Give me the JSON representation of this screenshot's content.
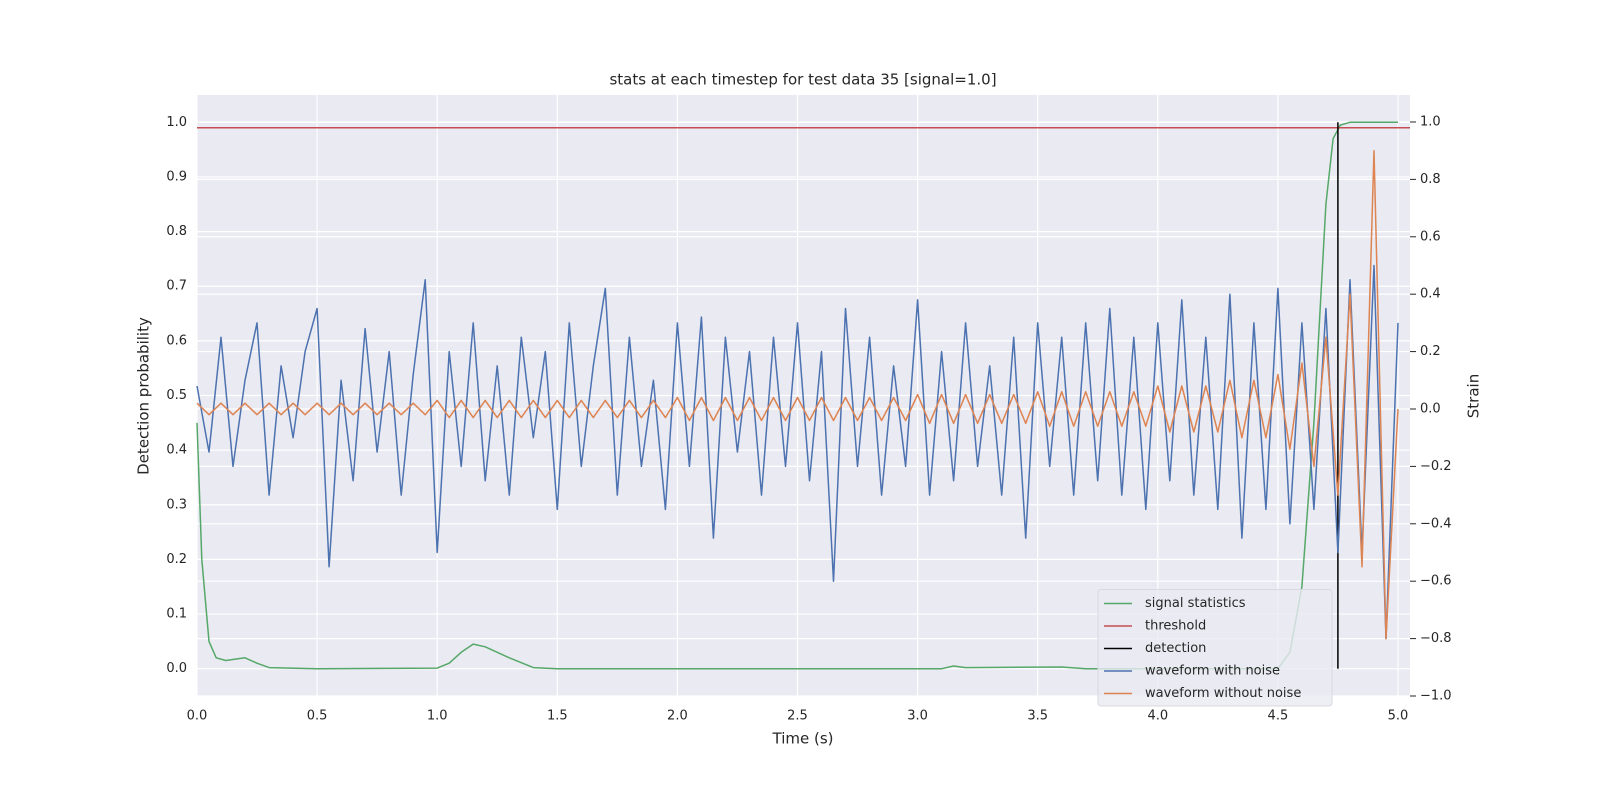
{
  "chart_data": {
    "type": "line",
    "title": "stats at each timestep for test data 35 [signal=1.0]",
    "xlabel": "Time (s)",
    "ylabel": "Detection probability",
    "y2label": "Strain",
    "xlim": [
      0,
      5.05
    ],
    "ylim": [
      -0.05,
      1.05
    ],
    "y2lim": [
      -1.0,
      1.094
    ],
    "xticks": [
      {
        "value": 0,
        "label": "0.0"
      },
      {
        "value": 0.5,
        "label": "0.5"
      },
      {
        "value": 1,
        "label": "1.0"
      },
      {
        "value": 1.5,
        "label": "1.5"
      },
      {
        "value": 2,
        "label": "2.0"
      },
      {
        "value": 2.5,
        "label": "2.5"
      },
      {
        "value": 3,
        "label": "3.0"
      },
      {
        "value": 3.5,
        "label": "3.5"
      },
      {
        "value": 4,
        "label": "4.0"
      },
      {
        "value": 4.5,
        "label": "4.5"
      },
      {
        "value": 5,
        "label": "5.0"
      }
    ],
    "yticks": [
      {
        "value": 0,
        "label": "0.0"
      },
      {
        "value": 0.1,
        "label": "0.1"
      },
      {
        "value": 0.2,
        "label": "0.2"
      },
      {
        "value": 0.3,
        "label": "0.3"
      },
      {
        "value": 0.4,
        "label": "0.4"
      },
      {
        "value": 0.5,
        "label": "0.5"
      },
      {
        "value": 0.6,
        "label": "0.6"
      },
      {
        "value": 0.7,
        "label": "0.7"
      },
      {
        "value": 0.8,
        "label": "0.8"
      },
      {
        "value": 0.9,
        "label": "0.9"
      },
      {
        "value": 1,
        "label": "1.0"
      }
    ],
    "y2ticks": [
      {
        "value": -1,
        "label": "−1.0"
      },
      {
        "value": -0.8,
        "label": "−0.8"
      },
      {
        "value": -0.6,
        "label": "−0.6"
      },
      {
        "value": -0.4,
        "label": "−0.4"
      },
      {
        "value": -0.2,
        "label": "−0.2"
      },
      {
        "value": 0,
        "label": "0.0"
      },
      {
        "value": 0.2,
        "label": "0.2"
      },
      {
        "value": 0.4,
        "label": "0.4"
      },
      {
        "value": 0.6,
        "label": "0.6"
      },
      {
        "value": 0.8,
        "label": "0.8"
      },
      {
        "value": 1,
        "label": "1.0"
      }
    ],
    "grid": true,
    "legend": "lower right",
    "x": [
      0,
      0.05,
      0.1,
      0.15,
      0.2,
      0.25,
      0.3,
      0.35,
      0.4,
      0.45,
      0.5,
      0.55,
      0.6,
      0.65,
      0.7,
      0.75,
      0.8,
      0.85,
      0.9,
      0.95,
      1,
      1.05,
      1.1,
      1.15,
      1.2,
      1.25,
      1.3,
      1.35,
      1.4,
      1.45,
      1.5,
      1.55,
      1.6,
      1.65,
      1.7,
      1.75,
      1.8,
      1.85,
      1.9,
      1.95,
      2,
      2.05,
      2.1,
      2.15,
      2.2,
      2.25,
      2.3,
      2.35,
      2.4,
      2.45,
      2.5,
      2.55,
      2.6,
      2.65,
      2.7,
      2.75,
      2.8,
      2.85,
      2.9,
      2.95,
      3,
      3.05,
      3.1,
      3.15,
      3.2,
      3.25,
      3.3,
      3.35,
      3.4,
      3.45,
      3.5,
      3.55,
      3.6,
      3.65,
      3.7,
      3.75,
      3.8,
      3.85,
      3.9,
      3.95,
      4,
      4.05,
      4.1,
      4.15,
      4.2,
      4.25,
      4.3,
      4.35,
      4.4,
      4.45,
      4.5,
      4.55,
      4.6,
      4.65,
      4.7,
      4.75,
      4.8,
      4.85,
      4.9,
      4.95,
      5
    ],
    "series": [
      {
        "name": "signal statistics",
        "color": "#55a868",
        "x": [
          0,
          0.02,
          0.05,
          0.08,
          0.12,
          0.2,
          0.25,
          0.3,
          0.5,
          1.0,
          1.05,
          1.1,
          1.15,
          1.2,
          1.3,
          1.4,
          1.5,
          3.1,
          3.15,
          3.2,
          3.6,
          3.7,
          4.5,
          4.55,
          4.6,
          4.65,
          4.7,
          4.73,
          4.76,
          4.8,
          5.0
        ],
        "values": [
          0.45,
          0.2,
          0.05,
          0.02,
          0.015,
          0.02,
          0.01,
          0.002,
          0,
          0.001,
          0.01,
          0.03,
          0.045,
          0.04,
          0.02,
          0.002,
          0,
          0,
          0.005,
          0.002,
          0.003,
          0,
          0,
          0.03,
          0.15,
          0.45,
          0.85,
          0.97,
          0.995,
          1.0,
          1.0
        ]
      },
      {
        "name": "threshold",
        "color": "#c44e52",
        "x": [
          0,
          5.05
        ],
        "values": [
          0.99,
          0.99
        ]
      },
      {
        "name": "detection",
        "color": "#000000",
        "x": [
          4.75,
          4.75
        ],
        "values": [
          0,
          1
        ]
      },
      {
        "name": "waveform with noise",
        "color": "#4c72b0",
        "axis": "y2",
        "values": [
          0.08,
          -0.15,
          0.25,
          -0.2,
          0.1,
          0.3,
          -0.3,
          0.15,
          -0.1,
          0.2,
          0.35,
          -0.55,
          0.1,
          -0.25,
          0.28,
          -0.15,
          0.2,
          -0.3,
          0.12,
          0.45,
          -0.5,
          0.2,
          -0.2,
          0.3,
          -0.25,
          0.15,
          -0.3,
          0.25,
          -0.1,
          0.2,
          -0.35,
          0.3,
          -0.2,
          0.15,
          0.42,
          -0.3,
          0.25,
          -0.2,
          0.1,
          -0.35,
          0.3,
          -0.2,
          0.32,
          -0.45,
          0.25,
          -0.15,
          0.2,
          -0.3,
          0.25,
          -0.2,
          0.3,
          -0.25,
          0.2,
          -0.6,
          0.35,
          -0.2,
          0.25,
          -0.3,
          0.15,
          -0.2,
          0.38,
          -0.3,
          0.2,
          -0.25,
          0.3,
          -0.2,
          0.15,
          -0.3,
          0.25,
          -0.45,
          0.3,
          -0.2,
          0.25,
          -0.3,
          0.3,
          -0.25,
          0.35,
          -0.3,
          0.25,
          -0.35,
          0.3,
          -0.25,
          0.38,
          -0.3,
          0.25,
          -0.35,
          0.4,
          -0.45,
          0.3,
          -0.35,
          0.42,
          -0.4,
          0.3,
          -0.35,
          0.35,
          -0.5,
          0.45,
          -0.5,
          0.5,
          -0.8,
          0.3
        ]
      },
      {
        "name": "waveform without noise",
        "color": "#dd8452",
        "axis": "y2",
        "values": [
          0.02,
          -0.02,
          0.02,
          -0.02,
          0.02,
          -0.02,
          0.02,
          -0.02,
          0.02,
          -0.02,
          0.02,
          -0.02,
          0.02,
          -0.02,
          0.02,
          -0.02,
          0.02,
          -0.02,
          0.02,
          -0.02,
          0.03,
          -0.03,
          0.03,
          -0.03,
          0.03,
          -0.03,
          0.03,
          -0.03,
          0.03,
          -0.03,
          0.03,
          -0.03,
          0.03,
          -0.03,
          0.03,
          -0.03,
          0.03,
          -0.03,
          0.03,
          -0.03,
          0.04,
          -0.04,
          0.04,
          -0.04,
          0.04,
          -0.04,
          0.04,
          -0.04,
          0.04,
          -0.04,
          0.04,
          -0.04,
          0.04,
          -0.04,
          0.04,
          -0.04,
          0.04,
          -0.04,
          0.04,
          -0.04,
          0.05,
          -0.05,
          0.05,
          -0.05,
          0.05,
          -0.05,
          0.05,
          -0.05,
          0.05,
          -0.05,
          0.06,
          -0.06,
          0.06,
          -0.06,
          0.06,
          -0.06,
          0.06,
          -0.06,
          0.06,
          -0.06,
          0.08,
          -0.08,
          0.08,
          -0.08,
          0.08,
          -0.08,
          0.1,
          -0.1,
          0.1,
          -0.1,
          0.12,
          -0.14,
          0.16,
          -0.2,
          0.25,
          -0.3,
          0.4,
          -0.55,
          0.9,
          -0.8,
          0.0
        ]
      }
    ]
  }
}
